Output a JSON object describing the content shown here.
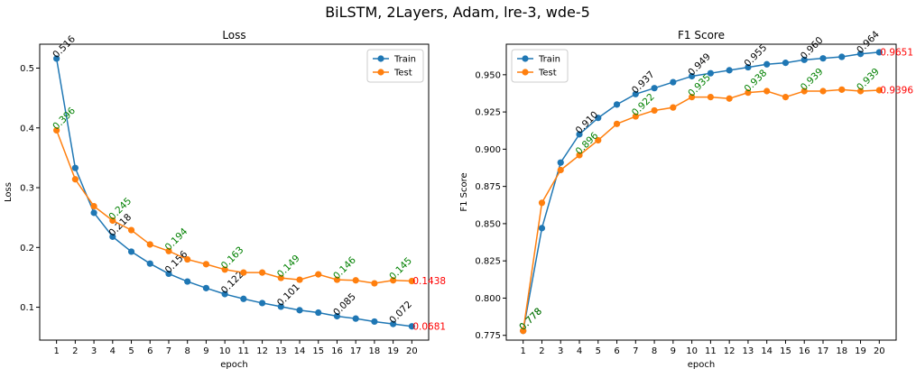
{
  "figure": {
    "suptitle": "BiLSTM, 2Layers, Adam, lre-3, wde-5"
  },
  "chart_data": [
    {
      "type": "line",
      "title": "Loss",
      "xlabel": "epoch",
      "ylabel": "Loss",
      "x": [
        1,
        2,
        3,
        4,
        5,
        6,
        7,
        8,
        9,
        10,
        11,
        12,
        13,
        14,
        15,
        16,
        17,
        18,
        19,
        20
      ],
      "xlim": [
        0.1,
        20.9
      ],
      "ylim": [
        0.045,
        0.54
      ],
      "yticks": [
        0.1,
        0.2,
        0.3,
        0.4,
        0.5
      ],
      "ytick_labels": [
        "0.1",
        "0.2",
        "0.3",
        "0.4",
        "0.5"
      ],
      "legend": {
        "position": "top-right"
      },
      "grid": false,
      "series": [
        {
          "name": "Train",
          "color": "#1f77b4",
          "values": [
            0.516,
            0.333,
            0.258,
            0.218,
            0.193,
            0.173,
            0.156,
            0.143,
            0.132,
            0.122,
            0.114,
            0.107,
            0.101,
            0.095,
            0.091,
            0.085,
            0.081,
            0.076,
            0.072,
            0.068
          ],
          "annotations": [
            {
              "i": 0,
              "text": "0.516"
            },
            {
              "i": 3,
              "text": "0.218"
            },
            {
              "i": 6,
              "text": "0.156"
            },
            {
              "i": 9,
              "text": "0.122"
            },
            {
              "i": 12,
              "text": "0.101"
            },
            {
              "i": 15,
              "text": "0.085"
            },
            {
              "i": 18,
              "text": "0.072"
            }
          ],
          "label_color": "#000000"
        },
        {
          "name": "Test",
          "color": "#ff7f0e",
          "values": [
            0.396,
            0.314,
            0.269,
            0.245,
            0.229,
            0.205,
            0.194,
            0.18,
            0.172,
            0.163,
            0.158,
            0.158,
            0.149,
            0.146,
            0.155,
            0.146,
            0.145,
            0.14,
            0.145,
            0.1438
          ],
          "annotations": [
            {
              "i": 0,
              "text": "0.396"
            },
            {
              "i": 3,
              "text": "0.245"
            },
            {
              "i": 6,
              "text": "0.194"
            },
            {
              "i": 9,
              "text": "0.163"
            },
            {
              "i": 12,
              "text": "0.149"
            },
            {
              "i": 15,
              "text": "0.146"
            },
            {
              "i": 18,
              "text": "0.145"
            }
          ],
          "label_color": "#008000"
        }
      ],
      "final_labels": [
        {
          "series": 1,
          "text": "0.1438",
          "color": "#ff0000"
        },
        {
          "series": 0,
          "text": "0.0681",
          "color": "#ff0000"
        }
      ]
    },
    {
      "type": "line",
      "title": "F1 Score",
      "xlabel": "epoch",
      "ylabel": "F1 Score",
      "x": [
        1,
        2,
        3,
        4,
        5,
        6,
        7,
        8,
        9,
        10,
        11,
        12,
        13,
        14,
        15,
        16,
        17,
        18,
        19,
        20
      ],
      "xlim": [
        0.1,
        20.9
      ],
      "ylim": [
        0.7718,
        0.9705
      ],
      "yticks": [
        0.775,
        0.8,
        0.825,
        0.85,
        0.875,
        0.9,
        0.925,
        0.95
      ],
      "ytick_labels": [
        "0.775",
        "0.800",
        "0.825",
        "0.850",
        "0.875",
        "0.900",
        "0.925",
        "0.950"
      ],
      "legend": {
        "position": "top-left"
      },
      "grid": false,
      "series": [
        {
          "name": "Train",
          "color": "#1f77b4",
          "values": [
            0.778,
            0.847,
            0.891,
            0.91,
            0.921,
            0.93,
            0.937,
            0.941,
            0.945,
            0.949,
            0.951,
            0.953,
            0.955,
            0.957,
            0.958,
            0.96,
            0.961,
            0.962,
            0.964,
            0.9651
          ],
          "annotations": [
            {
              "i": 0,
              "text": "0.778"
            },
            {
              "i": 3,
              "text": "0.910"
            },
            {
              "i": 6,
              "text": "0.937"
            },
            {
              "i": 9,
              "text": "0.949"
            },
            {
              "i": 12,
              "text": "0.955"
            },
            {
              "i": 15,
              "text": "0.960"
            },
            {
              "i": 18,
              "text": "0.964"
            }
          ],
          "label_color": "#000000"
        },
        {
          "name": "Test",
          "color": "#ff7f0e",
          "values": [
            0.778,
            0.864,
            0.886,
            0.896,
            0.906,
            0.917,
            0.922,
            0.926,
            0.928,
            0.935,
            0.935,
            0.934,
            0.938,
            0.939,
            0.935,
            0.939,
            0.939,
            0.94,
            0.939,
            0.9396
          ],
          "annotations": [
            {
              "i": 0,
              "text": "0.778"
            },
            {
              "i": 3,
              "text": "0.896"
            },
            {
              "i": 6,
              "text": "0.922"
            },
            {
              "i": 9,
              "text": "0.935"
            },
            {
              "i": 12,
              "text": "0.938"
            },
            {
              "i": 15,
              "text": "0.939"
            },
            {
              "i": 18,
              "text": "0.939"
            }
          ],
          "label_color": "#008000"
        }
      ],
      "final_labels": [
        {
          "series": 0,
          "text": "0.9651",
          "color": "#ff0000"
        },
        {
          "series": 1,
          "text": "0.9396",
          "color": "#ff0000"
        }
      ]
    }
  ]
}
